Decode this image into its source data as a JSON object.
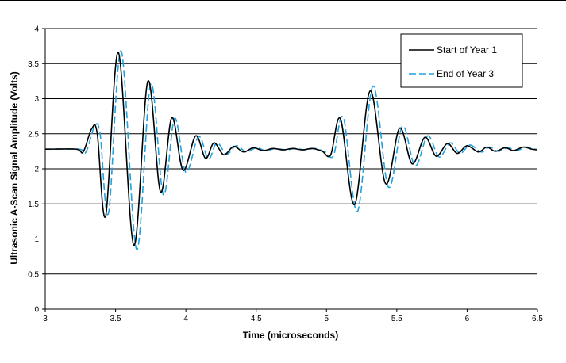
{
  "chart_data": {
    "type": "line",
    "xlabel": "Time (microseconds)",
    "ylabel": "Ultrasonic A-Scan Signal Amplitude (Volts)",
    "xlim": [
      3,
      6.5
    ],
    "ylim": [
      0,
      4
    ],
    "x_ticks": [
      "3",
      "3.5",
      "4",
      "4.5",
      "5",
      "5.5",
      "6",
      "6.5"
    ],
    "y_ticks": [
      "0",
      "0.5",
      "1",
      "1.5",
      "2",
      "2.5",
      "3",
      "3.5",
      "4"
    ],
    "grid": "horizontal",
    "legend_position": "top-right",
    "series": [
      {
        "name": "Start of Year 1",
        "color": "#000000",
        "style": "solid",
        "x": [
          3.0,
          3.22,
          3.27,
          3.33,
          3.37,
          3.43,
          3.52,
          3.63,
          3.73,
          3.82,
          3.9,
          3.98,
          4.07,
          4.14,
          4.2,
          4.27,
          4.34,
          4.41,
          4.48,
          4.55,
          4.62,
          4.69,
          4.76,
          4.83,
          4.9,
          4.97,
          5.03,
          5.1,
          5.2,
          5.31,
          5.42,
          5.52,
          5.61,
          5.7,
          5.78,
          5.86,
          5.93,
          6.0,
          6.08,
          6.14,
          6.2,
          6.27,
          6.33,
          6.4,
          6.46,
          6.5
        ],
        "y": [
          2.28,
          2.28,
          2.24,
          2.57,
          2.5,
          1.33,
          3.66,
          0.91,
          3.25,
          1.67,
          2.73,
          1.98,
          2.47,
          2.15,
          2.37,
          2.2,
          2.32,
          2.24,
          2.3,
          2.26,
          2.29,
          2.27,
          2.29,
          2.27,
          2.29,
          2.25,
          2.2,
          2.71,
          1.49,
          3.11,
          1.79,
          2.58,
          2.07,
          2.45,
          2.18,
          2.36,
          2.22,
          2.33,
          2.24,
          2.31,
          2.25,
          2.3,
          2.26,
          2.31,
          2.28,
          2.27
        ]
      },
      {
        "name": "End of Year 3",
        "color": "#1fa3df",
        "style": "dashed",
        "x": [
          3.0,
          3.24,
          3.29,
          3.35,
          3.39,
          3.45,
          3.54,
          3.65,
          3.75,
          3.84,
          3.92,
          4.0,
          4.09,
          4.16,
          4.22,
          4.29,
          4.36,
          4.43,
          4.5,
          4.57,
          4.64,
          4.71,
          4.78,
          4.85,
          4.92,
          4.99,
          5.05,
          5.12,
          5.22,
          5.33,
          5.44,
          5.54,
          5.63,
          5.72,
          5.8,
          5.88,
          5.95,
          6.02,
          6.1,
          6.16,
          6.22,
          6.29,
          6.35,
          6.42,
          6.48,
          6.5
        ],
        "y": [
          2.28,
          2.28,
          2.24,
          2.6,
          2.5,
          1.37,
          3.68,
          0.85,
          3.21,
          1.63,
          2.72,
          1.95,
          2.46,
          2.14,
          2.37,
          2.21,
          2.33,
          2.24,
          2.3,
          2.26,
          2.29,
          2.27,
          2.29,
          2.27,
          2.29,
          2.24,
          2.19,
          2.73,
          1.39,
          3.18,
          1.74,
          2.61,
          2.04,
          2.47,
          2.17,
          2.37,
          2.22,
          2.34,
          2.24,
          2.31,
          2.25,
          2.3,
          2.26,
          2.31,
          2.28,
          2.28
        ]
      }
    ]
  }
}
